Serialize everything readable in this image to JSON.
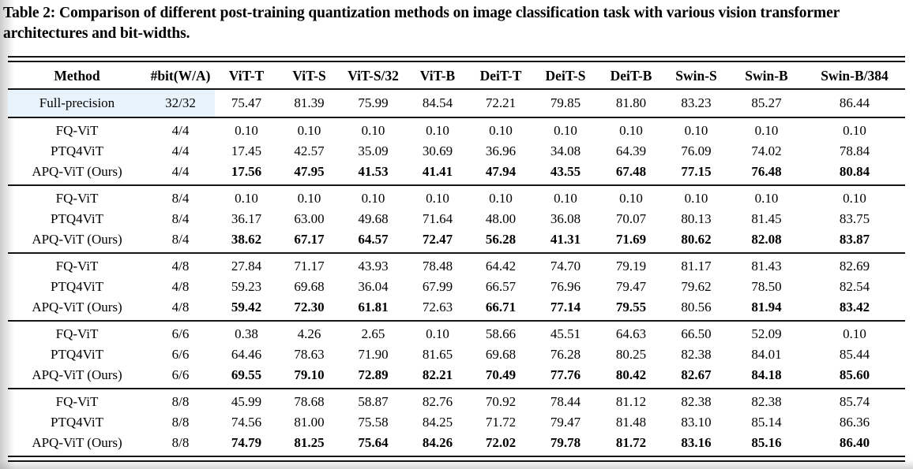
{
  "caption": {
    "label": "Table 2:",
    "text": "Comparison of different post-training quantization methods on image classification task with various vision transformer architectures and bit-widths."
  },
  "colors": {
    "rule": "#151515",
    "text": "#000000",
    "row_highlight": "#e7f2fb"
  },
  "table": {
    "columns": [
      "Method",
      "#bit(W/A)",
      "ViT-T",
      "ViT-S",
      "ViT-S/32",
      "ViT-B",
      "DeiT-T",
      "DeiT-S",
      "DeiT-B",
      "Swin-S",
      "Swin-B",
      "Swin-B/384"
    ],
    "full_precision": {
      "method": "Full-precision",
      "bits": "32/32",
      "values": [
        "75.47",
        "81.39",
        "75.99",
        "84.54",
        "72.21",
        "79.85",
        "81.80",
        "83.23",
        "85.27",
        "86.44"
      ],
      "highlighted": true
    },
    "groups": [
      {
        "rows": [
          {
            "method": "FQ-ViT",
            "bits": "4/4",
            "values": [
              "0.10",
              "0.10",
              "0.10",
              "0.10",
              "0.10",
              "0.10",
              "0.10",
              "0.10",
              "0.10",
              "0.10"
            ]
          },
          {
            "method": "PTQ4ViT",
            "bits": "4/4",
            "values": [
              "17.45",
              "42.57",
              "35.09",
              "30.69",
              "36.96",
              "34.08",
              "64.39",
              "76.09",
              "74.02",
              "78.84"
            ]
          },
          {
            "method": "APQ-ViT (Ours)",
            "bits": "4/4",
            "values": [
              "17.56",
              "47.95",
              "41.53",
              "41.41",
              "47.94",
              "43.55",
              "67.48",
              "77.15",
              "76.48",
              "80.84"
            ],
            "bold": [
              true,
              true,
              true,
              true,
              true,
              true,
              true,
              true,
              true,
              true
            ]
          }
        ]
      },
      {
        "rows": [
          {
            "method": "FQ-ViT",
            "bits": "8/4",
            "values": [
              "0.10",
              "0.10",
              "0.10",
              "0.10",
              "0.10",
              "0.10",
              "0.10",
              "0.10",
              "0.10",
              "0.10"
            ]
          },
          {
            "method": "PTQ4ViT",
            "bits": "8/4",
            "values": [
              "36.17",
              "63.00",
              "49.68",
              "71.64",
              "48.00",
              "36.08",
              "70.07",
              "80.13",
              "81.45",
              "83.75"
            ]
          },
          {
            "method": "APQ-ViT (Ours)",
            "bits": "8/4",
            "values": [
              "38.62",
              "67.17",
              "64.57",
              "72.47",
              "56.28",
              "41.31",
              "71.69",
              "80.62",
              "82.08",
              "83.87"
            ],
            "bold": [
              true,
              true,
              true,
              true,
              true,
              true,
              true,
              true,
              true,
              true
            ]
          }
        ]
      },
      {
        "rows": [
          {
            "method": "FQ-ViT",
            "bits": "4/8",
            "values": [
              "27.84",
              "71.17",
              "43.93",
              "78.48",
              "64.42",
              "74.70",
              "79.19",
              "81.17",
              "81.43",
              "82.69"
            ]
          },
          {
            "method": "PTQ4ViT",
            "bits": "4/8",
            "values": [
              "59.23",
              "69.68",
              "36.04",
              "67.99",
              "66.57",
              "76.96",
              "79.47",
              "79.62",
              "78.50",
              "82.54"
            ]
          },
          {
            "method": "APQ-ViT (Ours)",
            "bits": "4/8",
            "values": [
              "59.42",
              "72.30",
              "61.81",
              "72.63",
              "66.71",
              "77.14",
              "79.55",
              "80.56",
              "81.94",
              "83.42"
            ],
            "bold": [
              true,
              true,
              true,
              false,
              true,
              true,
              true,
              false,
              true,
              true
            ]
          }
        ]
      },
      {
        "rows": [
          {
            "method": "FQ-ViT",
            "bits": "6/6",
            "values": [
              "0.38",
              "4.26",
              "2.65",
              "0.10",
              "58.66",
              "45.51",
              "64.63",
              "66.50",
              "52.09",
              "0.10"
            ]
          },
          {
            "method": "PTQ4ViT",
            "bits": "6/6",
            "values": [
              "64.46",
              "78.63",
              "71.90",
              "81.65",
              "69.68",
              "76.28",
              "80.25",
              "82.38",
              "84.01",
              "85.44"
            ]
          },
          {
            "method": "APQ-ViT (Ours)",
            "bits": "6/6",
            "values": [
              "69.55",
              "79.10",
              "72.89",
              "82.21",
              "70.49",
              "77.76",
              "80.42",
              "82.67",
              "84.18",
              "85.60"
            ],
            "bold": [
              true,
              true,
              true,
              true,
              true,
              true,
              true,
              true,
              true,
              true
            ]
          }
        ]
      },
      {
        "rows": [
          {
            "method": "FQ-ViT",
            "bits": "8/8",
            "values": [
              "45.99",
              "78.68",
              "58.87",
              "82.76",
              "70.92",
              "78.44",
              "81.12",
              "82.38",
              "82.38",
              "85.74"
            ]
          },
          {
            "method": "PTQ4ViT",
            "bits": "8/8",
            "values": [
              "74.56",
              "81.00",
              "75.58",
              "84.25",
              "71.72",
              "79.47",
              "81.48",
              "83.10",
              "85.14",
              "86.36"
            ]
          },
          {
            "method": "APQ-ViT (Ours)",
            "bits": "8/8",
            "values": [
              "74.79",
              "81.25",
              "75.64",
              "84.26",
              "72.02",
              "79.78",
              "81.72",
              "83.16",
              "85.16",
              "86.40"
            ],
            "bold": [
              true,
              true,
              true,
              true,
              true,
              true,
              true,
              true,
              true,
              true
            ]
          }
        ]
      }
    ]
  }
}
